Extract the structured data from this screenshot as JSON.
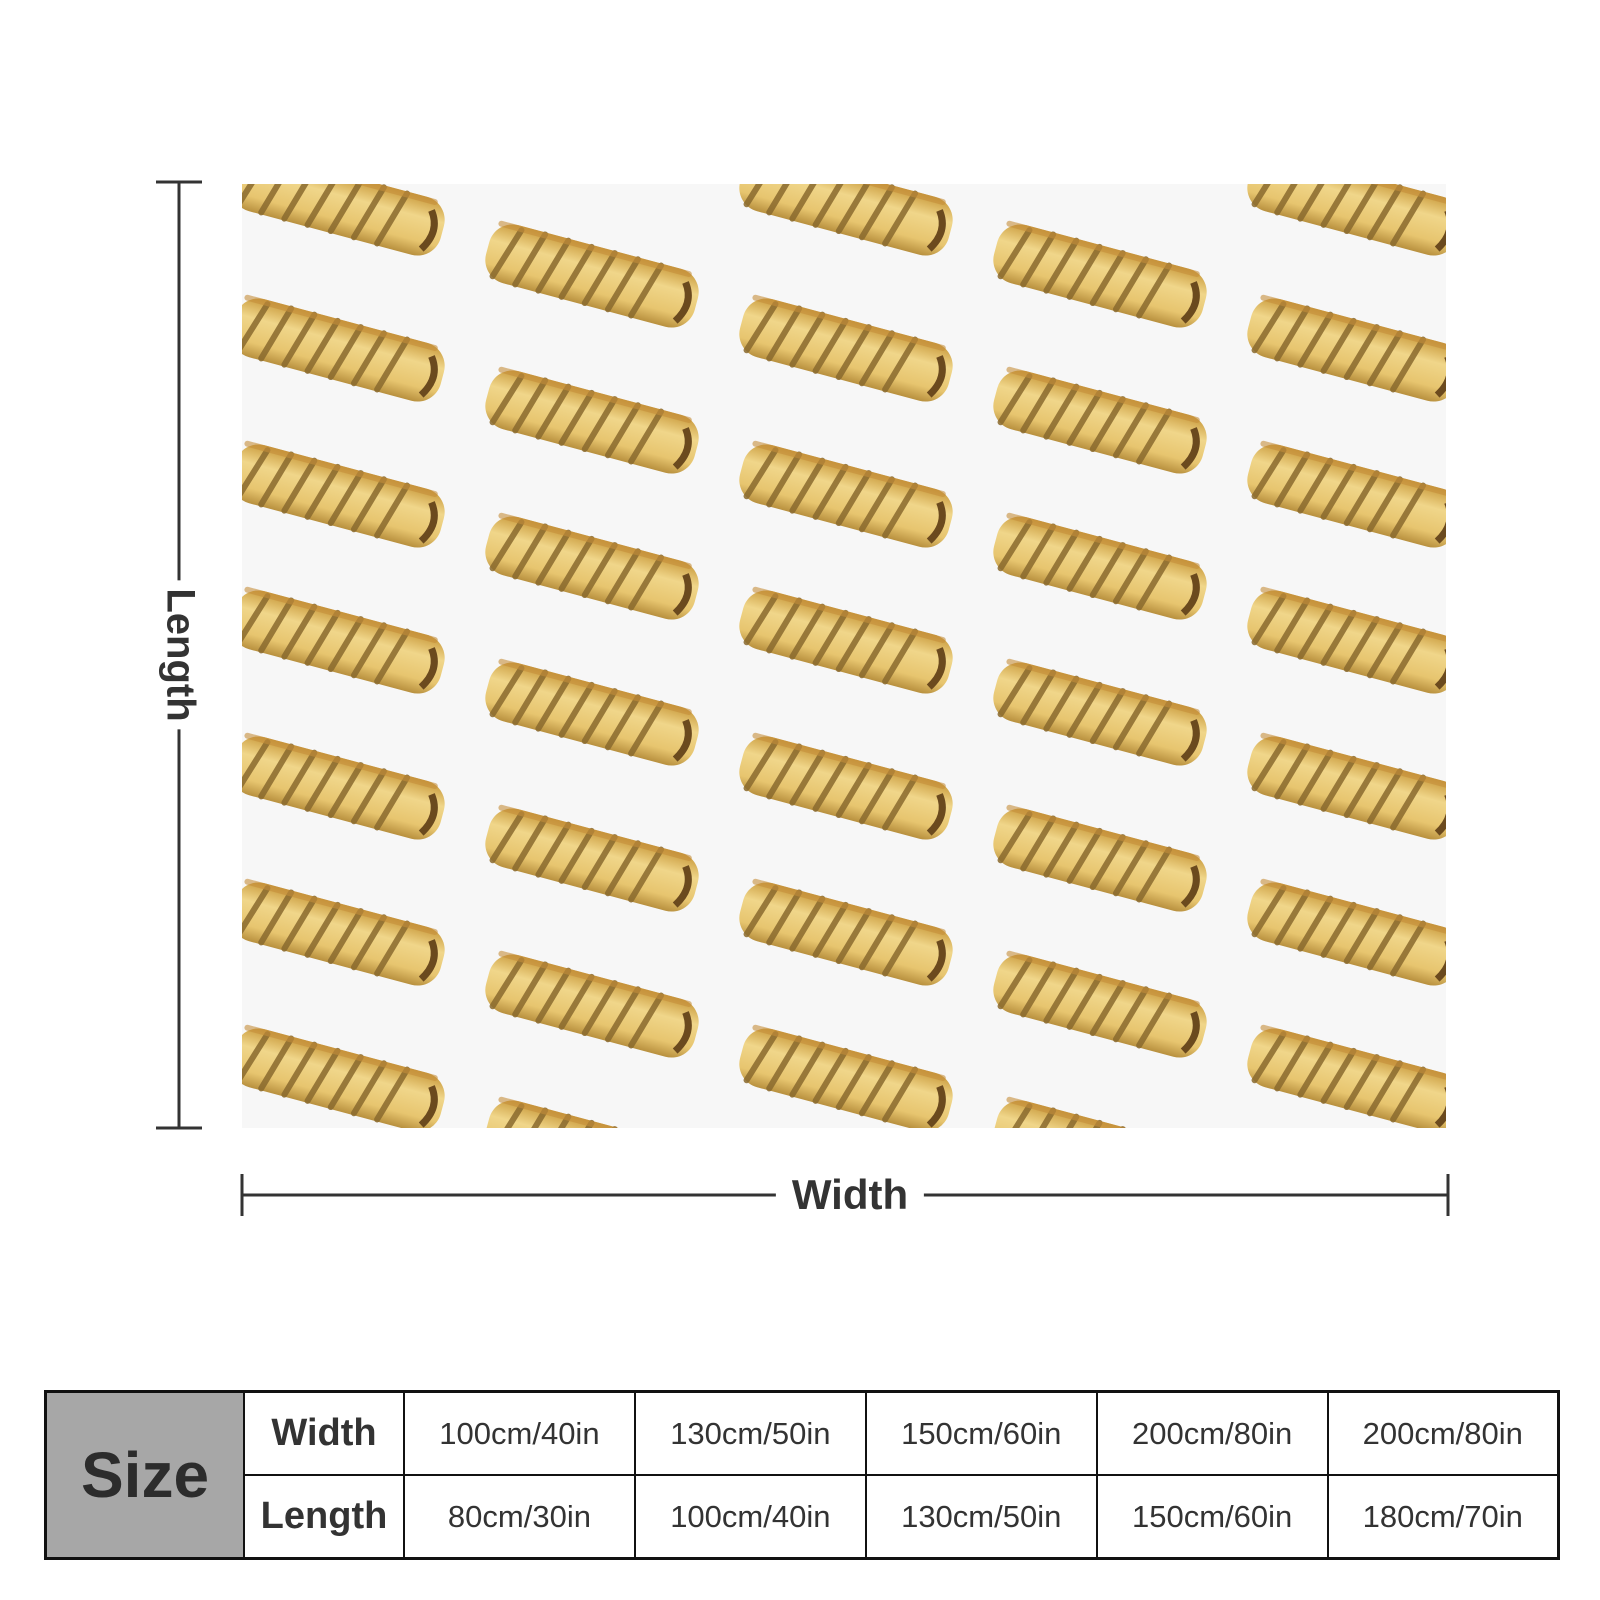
{
  "diagram": {
    "length_label": "Length",
    "width_label": "Width"
  },
  "size_table": {
    "header": "Size",
    "rows": [
      {
        "label": "Width",
        "values": [
          "100cm/40in",
          "130cm/50in",
          "150cm/60in",
          "200cm/80in",
          "200cm/80in"
        ]
      },
      {
        "label": "Length",
        "values": [
          "80cm/30in",
          "100cm/40in",
          "130cm/50in",
          "150cm/60in",
          "180cm/70in"
        ]
      }
    ]
  },
  "colors": {
    "pastry": "#e3c36c",
    "pastry_dark": "#8a6a2e",
    "size_cell": "#a7a7a7"
  }
}
